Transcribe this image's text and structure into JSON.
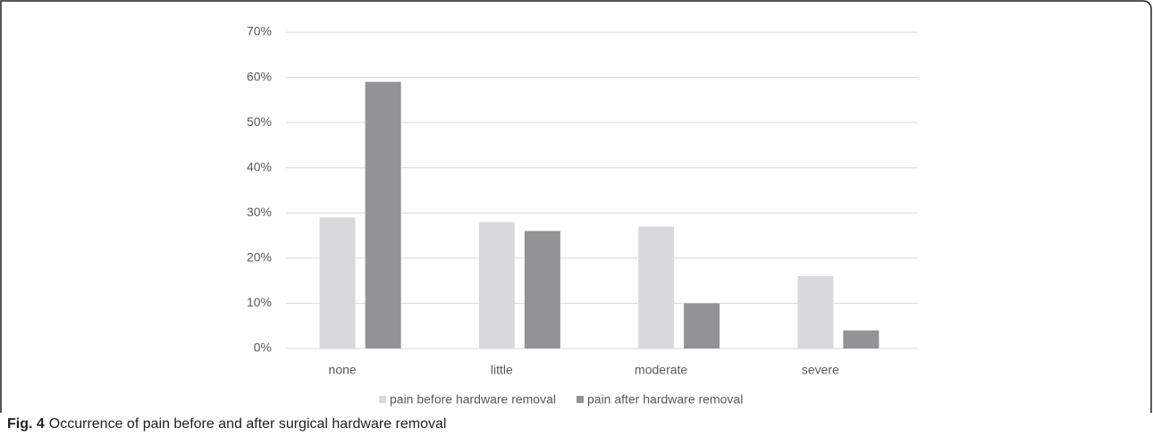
{
  "chart_data": {
    "type": "bar",
    "categories": [
      "none",
      "little",
      "moderate",
      "severe"
    ],
    "series": [
      {
        "name": "pain before hardware removal",
        "color": "#d9d9db",
        "values": [
          29,
          28,
          27,
          16
        ]
      },
      {
        "name": "pain after hardware removal",
        "color": "#939396",
        "values": [
          59,
          26,
          10,
          4
        ]
      }
    ],
    "ylim": [
      0,
      70
    ],
    "yticks": [
      {
        "value": 0,
        "label": "0%"
      },
      {
        "value": 10,
        "label": "10%"
      },
      {
        "value": 20,
        "label": "20%"
      },
      {
        "value": 30,
        "label": "30%"
      },
      {
        "value": 40,
        "label": "40%"
      },
      {
        "value": 50,
        "label": "50%"
      },
      {
        "value": 60,
        "label": "60%"
      },
      {
        "value": 70,
        "label": "70%"
      }
    ],
    "grid": true,
    "legend": "bottom"
  },
  "caption": {
    "label": "Fig. 4",
    "text": "Occurrence of pain before and after surgical hardware removal"
  }
}
